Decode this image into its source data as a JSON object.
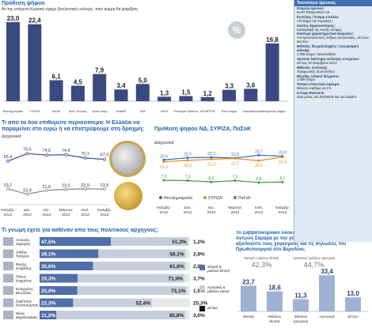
{
  "colors": {
    "bar_dark": "#394a80",
    "nd_blue": "#2f66b8",
    "syriza_orange": "#e88a22",
    "pasok_green": "#3f9b35",
    "title_blue": "#1d5fa8",
    "panel_bg": "#dfe9f3"
  },
  "icons": [
    "percent-icon",
    "euro-coin-icon"
  ],
  "panel1": {
    "title": "Πρόθεση ψήφου",
    "subtitle": "Αν την επόμενη Κυριακή είχαμε βουλευτικές εκλογές, ποιο κόμμα θα ψηφίζατε;",
    "badge": "%"
  },
  "panel2": {
    "title": "Τι από τα δύο επιθυμείτε περισσότερο: Η Ελλάδα να παραμείνει στο ευρώ ή να επιστρέψουμε στη δραχμή;",
    "subtitle": "Διαχρονικά"
  },
  "panel3": {
    "title": "Πρόθεση ψήφου ΝΔ, ΣΥΡΙΖΑ, ΠαΣοΚ",
    "subtitle": "Διαχρονικά"
  },
  "panel4": {
    "title": "Τι γνώμη έχετε για καθέναν από τους πολιτικούς αρχηγούς;"
  },
  "panel5": {
    "title": "Το Σαββατοκύριακο ολοκληρώθηκαν οι συναντήσεις του κ. Αντώνη Σαμαρά με την γερμανική ηγεσία. Εσείς πώς αξιολογείτε τους χειρισμούς και τις δηλώσεις του Πρωθυπουργού στο Βερολίνο;"
  },
  "sidebar": {
    "header": "Ταυτότητα έρευνας",
    "items": [
      {
        "label": "Εταιρεία έρευνας:",
        "value": "KAPA RESEARCH AE"
      },
      {
        "label": "Εντολέας / Όνομα εντολέα:",
        "value": "«Το Βήμα της Κυριακής»"
      },
      {
        "label": "Σκοπός δημοσκόπησης:",
        "value": "Καταγραφή της κοινής γνώμης"
      },
      {
        "label": "Ιδιαίτερα χαρακτηριστικά δείγματος:",
        "value": "Αντιπροσωπευτικό, άνδρες και γυναίκες, 18 ετών και άνω"
      },
      {
        "label": "Μέθοδος δειγματοληψίας / γεωγραφική κάλυψη:",
        "value": "1.009 άτομα, πανελλαδικά"
      },
      {
        "label": "Χρονικό διάστημα συλλογής στοιχείων:",
        "value": "26 έως 28 Νοεμβρίου 2013"
      },
      {
        "label": "Μέθοδος συλλογής:",
        "value": "Τηλεφωνικές συνεντεύξεις"
      },
      {
        "label": "Μέγεθος τελικού δείγματος:",
        "value": "1.009 άτομα"
      },
      {
        "label": "Τυπικό στατιστικό σφάλμα:",
        "value": "Μέγιστο σφάλμα ±3,1%"
      },
      {
        "label": "Η Kapa Research",
        "value": "είναι μέλος του ESOMAR και του ΣΕΔΕΑ"
      }
    ]
  },
  "chart_data": [
    {
      "type": "bar",
      "title": "Πρόθεση ψήφου",
      "categories": [
        "Νέα Δημοκρατία",
        "ΣΥΡΙΖΑ",
        "ΠαΣοΚ",
        "Ανεξ. Έλληνες",
        "Χρυσή Αυγή",
        "ΔΗΜΑΡ",
        "ΚΚΕ",
        "ΛΑΟΣ",
        "Οικολόγοι Πράσινοι",
        "ΑΝΤΑΡΣΥΑ",
        "Άλλο κόμμα",
        "Λευκό/Άκυρο",
        "Αδιευκρίνιστη ψήφος"
      ],
      "values": [
        23.0,
        22.4,
        6.1,
        4.5,
        7.9,
        3.4,
        5.0,
        1.3,
        1.5,
        1.2,
        3.3,
        3.6,
        16.8
      ]
    },
    {
      "type": "line",
      "title": "Τι από τα δύο επιθυμείτε περισσότερο: Η Ελλάδα να παραμείνει στο ευρώ ή να επιστρέψουμε στη δραχμή;",
      "categories": [
        "Νοέμβρ. 2012",
        "Δεκ. 2012",
        "Ιαν. 2013",
        "Μάρτιος 2013",
        "Ιούλ. 2013",
        "Νοέμβρ. 2013"
      ],
      "series": [
        {
          "name": "Ευρώ",
          "values": [
            65.4,
            76.5,
            74.5,
            74.9,
            70.1,
            67.9
          ]
        },
        {
          "name": "Δραχμή",
          "values": [
            23.7,
            15.9,
            21.6,
            23.0,
            23.9,
            23.5
          ]
        }
      ]
    },
    {
      "type": "line",
      "title": "Πρόθεση ψήφου ΝΔ, ΣΥΡΙΖΑ, ΠαΣοΚ",
      "categories": [
        "Νοέμβρ. 2012",
        "Δεκ. 2012",
        "Ιαν. 2013",
        "Μάρτιος 2013",
        "Ιούλ. 2013",
        "Νοέμβρ. 2013"
      ],
      "series": [
        {
          "name": "Νέα Δημοκρατία",
          "values": [
            20.6,
            22.0,
            22.3,
            21.8,
            23.7,
            23.0
          ]
        },
        {
          "name": "ΣΥΡΙΖΑ",
          "values": [
            19.3,
            20.3,
            21.0,
            21.5,
            20.1,
            22.4
          ]
        },
        {
          "name": "ΠαΣοΚ",
          "values": [
            7.2,
            7.0,
            6.1,
            7.0,
            5.8,
            6.1
          ]
        }
      ]
    },
    {
      "type": "bar",
      "title": "Τι γνώμη έχετε για καθέναν από τους πολιτικούς αρχηγούς;",
      "categories": [
        "Αντώνης Σαμαράς",
        "Αλέξης Τσίπρας",
        "Φώτης Κουβέλης",
        "Πάνος Καμμένος",
        "Ευάγγελος Βενιζέλος",
        "Δημήτρης Κουτσούμπας",
        "Νίκος Μιχαλολιάκος"
      ],
      "series": [
        {
          "name": "Θετική & μάλλον θετική",
          "values": [
            47.5,
            39.1,
            35.6,
            25.3,
            25.0,
            22.3,
            11.2
          ]
        },
        {
          "name": "Αρνητική & μάλλον αρνητική",
          "values": [
            51.3,
            58.1,
            61.6,
            71.0,
            73.1,
            52.4,
            85.8
          ]
        },
        {
          "name": "ΔΓ/ΔΑ",
          "values": [
            1.2,
            2.8,
            2.8,
            3.7,
            1.9,
            25.3,
            3.0
          ]
        }
      ]
    },
    {
      "type": "bar",
      "title": "Το Σαββατοκύριακο ολοκληρώθηκαν οι συναντήσεις του κ. Αντώνη Σαμαρά με την γερμανική ηγεσία. Εσείς πώς αξιολογείτε τους χειρισμούς και τις δηλώσεις του Πρωθυπουργού στο Βερολίνο;",
      "categories": [
        "Θετικά",
        "Μάλλον θετικά",
        "Μάλλον αρνητικά",
        "Αρνητικά",
        "ΔΓ/ΔΑ"
      ],
      "values": [
        23.7,
        18.6,
        11.3,
        33.4,
        13.0
      ],
      "group_totals": [
        {
          "name": "Θετικά / μάλλον θετικά",
          "value": 42.3
        },
        {
          "name": "Αρνητικά / μάλλον αρνητικά",
          "value": 44.7
        }
      ]
    }
  ]
}
